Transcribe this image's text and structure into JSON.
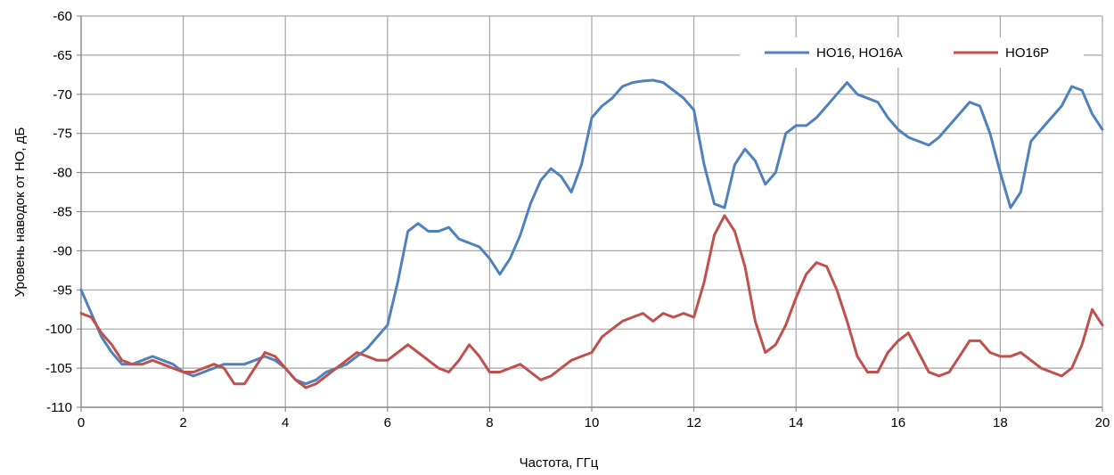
{
  "chart_data": {
    "type": "line",
    "title": "",
    "xlabel": "Частота, ГГц",
    "ylabel": "Уровень наводок от НО, дБ",
    "xlim": [
      0,
      20
    ],
    "ylim": [
      -110,
      -60
    ],
    "xticks": [
      "0",
      "2",
      "4",
      "6",
      "8",
      "10",
      "12",
      "14",
      "16",
      "18",
      "20"
    ],
    "yticks": [
      "-60",
      "-65",
      "-70",
      "-75",
      "-80",
      "-85",
      "-90",
      "-95",
      "-100",
      "-105",
      "-110"
    ],
    "grid": true,
    "legend_position": "top-right",
    "series": [
      {
        "name": "НО16, НО16А",
        "color": "#4F81BD",
        "x": [
          0,
          0.2,
          0.4,
          0.6,
          0.8,
          1.0,
          1.2,
          1.4,
          1.6,
          1.8,
          2.0,
          2.2,
          2.4,
          2.6,
          2.8,
          3.0,
          3.2,
          3.4,
          3.6,
          3.8,
          4.0,
          4.2,
          4.4,
          4.6,
          4.8,
          5.0,
          5.2,
          5.4,
          5.6,
          5.8,
          6.0,
          6.2,
          6.4,
          6.6,
          6.8,
          7.0,
          7.2,
          7.4,
          7.6,
          7.8,
          8.0,
          8.2,
          8.4,
          8.6,
          8.8,
          9.0,
          9.2,
          9.4,
          9.6,
          9.8,
          10.0,
          10.2,
          10.4,
          10.6,
          10.8,
          11.0,
          11.2,
          11.4,
          11.6,
          11.8,
          12.0,
          12.2,
          12.4,
          12.6,
          12.8,
          13.0,
          13.2,
          13.4,
          13.6,
          13.8,
          14.0,
          14.2,
          14.4,
          14.6,
          14.8,
          15.0,
          15.2,
          15.4,
          15.6,
          15.8,
          16.0,
          16.2,
          16.4,
          16.6,
          16.8,
          17.0,
          17.2,
          17.4,
          17.6,
          17.8,
          18.0,
          18.2,
          18.4,
          18.6,
          18.8,
          19.0,
          19.2,
          19.4,
          19.6,
          19.8,
          20.0
        ],
        "values": [
          -95,
          -98,
          -101,
          -103,
          -104.5,
          -104.5,
          -104,
          -103.5,
          -104,
          -104.5,
          -105.5,
          -106,
          -105.5,
          -105,
          -104.5,
          -104.5,
          -104.5,
          -104,
          -103.5,
          -104,
          -105,
          -106.5,
          -107,
          -106.5,
          -105.5,
          -105,
          -104.5,
          -103.5,
          -102.5,
          -101,
          -99.5,
          -94,
          -87.5,
          -86.5,
          -87.5,
          -87.5,
          -87,
          -88.5,
          -89,
          -89.5,
          -91,
          -93,
          -91,
          -88,
          -84,
          -81,
          -79.5,
          -80.5,
          -82.5,
          -79,
          -73,
          -71.5,
          -70.5,
          -69,
          -68.5,
          -68.3,
          -68.2,
          -68.5,
          -69.5,
          -70.5,
          -72,
          -79,
          -84,
          -84.5,
          -79,
          -77,
          -78.5,
          -81.5,
          -80,
          -75,
          -74,
          -74,
          -73,
          -71.5,
          -70,
          -68.5,
          -70,
          -70.5,
          -71,
          -73,
          -74.5,
          -75.5,
          -76,
          -76.5,
          -75.5,
          -74,
          -72.5,
          -71,
          -71.5,
          -75,
          -80,
          -84.5,
          -82.5,
          -76,
          -74.5,
          -73,
          -71.5,
          -69,
          -69.5,
          -72.5,
          -74.5
        ]
      },
      {
        "name": "НО16Р",
        "color": "#C0504D",
        "x": [
          0,
          0.2,
          0.4,
          0.6,
          0.8,
          1.0,
          1.2,
          1.4,
          1.6,
          1.8,
          2.0,
          2.2,
          2.4,
          2.6,
          2.8,
          3.0,
          3.2,
          3.4,
          3.6,
          3.8,
          4.0,
          4.2,
          4.4,
          4.6,
          4.8,
          5.0,
          5.2,
          5.4,
          5.6,
          5.8,
          6.0,
          6.2,
          6.4,
          6.6,
          6.8,
          7.0,
          7.2,
          7.4,
          7.6,
          7.8,
          8.0,
          8.2,
          8.4,
          8.6,
          8.8,
          9.0,
          9.2,
          9.4,
          9.6,
          9.8,
          10.0,
          10.2,
          10.4,
          10.6,
          10.8,
          11.0,
          11.2,
          11.4,
          11.6,
          11.8,
          12.0,
          12.2,
          12.4,
          12.6,
          12.8,
          13.0,
          13.2,
          13.4,
          13.6,
          13.8,
          14.0,
          14.2,
          14.4,
          14.6,
          14.8,
          15.0,
          15.2,
          15.4,
          15.6,
          15.8,
          16.0,
          16.2,
          16.4,
          16.6,
          16.8,
          17.0,
          17.2,
          17.4,
          17.6,
          17.8,
          18.0,
          18.2,
          18.4,
          18.6,
          18.8,
          19.0,
          19.2,
          19.4,
          19.6,
          19.8,
          20.0
        ],
        "values": [
          -98,
          -98.5,
          -100.5,
          -102,
          -104,
          -104.5,
          -104.5,
          -104,
          -104.5,
          -105,
          -105.5,
          -105.5,
          -105,
          -104.5,
          -105,
          -107,
          -107,
          -105,
          -103,
          -103.5,
          -105,
          -106.5,
          -107.5,
          -107,
          -106,
          -105,
          -104,
          -103,
          -103.5,
          -104,
          -104,
          -103,
          -102,
          -103,
          -104,
          -105,
          -105.5,
          -104,
          -102,
          -103.5,
          -105.5,
          -105.5,
          -105,
          -104.5,
          -105.5,
          -106.5,
          -106,
          -105,
          -104,
          -103.5,
          -103,
          -101,
          -100,
          -99,
          -98.5,
          -98,
          -99,
          -98,
          -98.5,
          -98,
          -98.5,
          -94,
          -88,
          -85.5,
          -87.5,
          -92,
          -99,
          -103,
          -102,
          -99.5,
          -96,
          -93,
          -91.5,
          -92,
          -95,
          -99,
          -103.5,
          -105.5,
          -105.5,
          -103,
          -101.5,
          -100.5,
          -103,
          -105.5,
          -106,
          -105.5,
          -103.5,
          -101.5,
          -101.5,
          -103,
          -103.5,
          -103.5,
          -103,
          -104,
          -105,
          -105.5,
          -106,
          -105,
          -102,
          -97.5,
          -99.5
        ]
      }
    ]
  }
}
